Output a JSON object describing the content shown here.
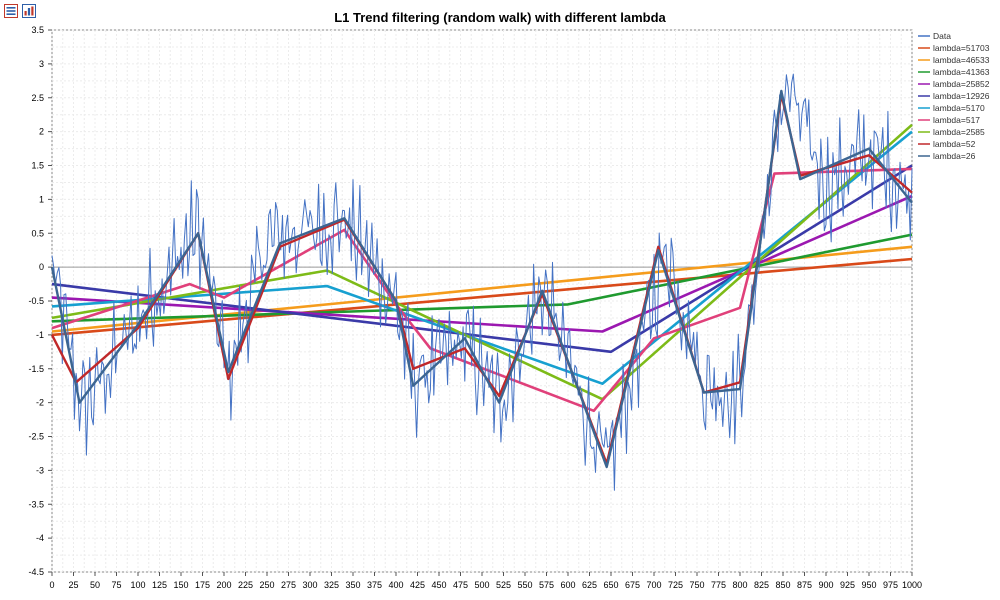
{
  "toolbar": {
    "buttons": [
      {
        "icon": "list-view-icon"
      },
      {
        "icon": "chart-view-icon"
      }
    ]
  },
  "chart_data": {
    "type": "line",
    "title": "L1 Trend filtering (random walk) with different lambda",
    "xlabel": "",
    "ylabel": "",
    "xlim": [
      0,
      1000
    ],
    "ylim": [
      -4.5,
      3.5
    ],
    "grid": true,
    "legend_position": "right",
    "x_ticks": [
      0,
      25,
      50,
      75,
      100,
      125,
      150,
      175,
      200,
      225,
      250,
      275,
      300,
      325,
      350,
      375,
      400,
      425,
      450,
      475,
      500,
      525,
      550,
      575,
      600,
      625,
      650,
      675,
      700,
      725,
      750,
      775,
      800,
      825,
      850,
      875,
      900,
      925,
      950,
      975,
      1000
    ],
    "y_ticks": [
      3.5,
      3,
      2.5,
      2,
      1.5,
      1,
      0.5,
      0,
      -0.5,
      -1,
      -1.5,
      -2,
      -2.5,
      -3,
      -3.5,
      -4,
      -4.5
    ],
    "series": [
      {
        "name": "Data",
        "color": "#4472c4",
        "kind": "noisy",
        "x": [
          0,
          35,
          170,
          205,
          250,
          340,
          400,
          420,
          480,
          520,
          570,
          645,
          715,
          760,
          800,
          850,
          860,
          900,
          950,
          970,
          1000
        ],
        "y": [
          0,
          -2.1,
          0.6,
          -1.6,
          0.4,
          0.7,
          -0.5,
          -1.7,
          -1.1,
          -2.0,
          -0.3,
          -3.0,
          0.3,
          -1.8,
          -1.8,
          2.6,
          2.5,
          1.2,
          1.7,
          1.5,
          1.0
        ]
      },
      {
        "name": "lambda=51703",
        "color": "#d94a1a",
        "x": [
          0,
          1000
        ],
        "y": [
          -1.0,
          0.12
        ]
      },
      {
        "name": "lambda=46533",
        "color": "#f59c1c",
        "x": [
          0,
          1000
        ],
        "y": [
          -0.95,
          0.3
        ]
      },
      {
        "name": "lambda=41363",
        "color": "#1f9a2f",
        "x": [
          0,
          600,
          1000
        ],
        "y": [
          -0.8,
          -0.55,
          0.48
        ]
      },
      {
        "name": "lambda=25852",
        "color": "#9b18b0",
        "x": [
          0,
          640,
          1000
        ],
        "y": [
          -0.45,
          -0.95,
          1.05
        ]
      },
      {
        "name": "lambda=12926",
        "color": "#3a3aa8",
        "x": [
          0,
          650,
          1000
        ],
        "y": [
          -0.25,
          -1.25,
          1.5
        ]
      },
      {
        "name": "lambda=5170",
        "color": "#17a0d0",
        "x": [
          0,
          320,
          640,
          1000
        ],
        "y": [
          -0.58,
          -0.28,
          -1.72,
          2.0
        ]
      },
      {
        "name": "lambda=517",
        "color": "#e0407a",
        "x": [
          0,
          160,
          200,
          340,
          400,
          440,
          630,
          700,
          800,
          840,
          1000
        ],
        "y": [
          -0.9,
          -0.25,
          -0.45,
          0.55,
          -0.55,
          -1.2,
          -2.12,
          -1.05,
          -0.6,
          1.38,
          1.45
        ]
      },
      {
        "name": "lambda=2585",
        "color": "#7dbb18",
        "x": [
          0,
          320,
          640,
          1000
        ],
        "y": [
          -0.75,
          -0.05,
          -1.95,
          2.1
        ]
      },
      {
        "name": "lambda=52",
        "color": "#c0282a",
        "x": [
          0,
          28,
          100,
          170,
          205,
          265,
          340,
          400,
          420,
          480,
          520,
          570,
          645,
          705,
          758,
          800,
          848,
          870,
          950,
          1000
        ],
        "y": [
          -1.0,
          -1.7,
          -0.9,
          0.5,
          -1.65,
          0.3,
          0.7,
          -0.5,
          -1.5,
          -1.2,
          -1.9,
          -0.4,
          -2.9,
          0.3,
          -1.85,
          -1.7,
          2.55,
          1.35,
          1.65,
          1.1
        ]
      },
      {
        "name": "lambda=26",
        "color": "#3c6591",
        "x": [
          0,
          32,
          100,
          170,
          205,
          265,
          340,
          400,
          420,
          480,
          520,
          570,
          645,
          705,
          758,
          800,
          848,
          870,
          950,
          1000
        ],
        "y": [
          0.0,
          -2.0,
          -0.85,
          0.5,
          -1.55,
          0.35,
          0.72,
          -0.5,
          -1.75,
          -1.05,
          -2.0,
          -0.35,
          -2.95,
          0.25,
          -1.85,
          -1.8,
          2.6,
          1.3,
          1.75,
          0.95
        ]
      }
    ]
  }
}
